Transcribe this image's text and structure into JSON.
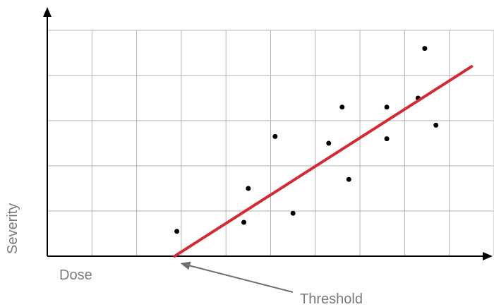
{
  "chart_data": {
    "type": "scatter",
    "title": "",
    "xlabel": "Dose",
    "ylabel": "Severity",
    "xlim": [
      0,
      10
    ],
    "ylim": [
      0,
      5
    ],
    "grid": true,
    "points": [
      {
        "x": 2.9,
        "y": 0.55
      },
      {
        "x": 4.4,
        "y": 0.75
      },
      {
        "x": 4.5,
        "y": 1.5
      },
      {
        "x": 5.1,
        "y": 2.65
      },
      {
        "x": 5.5,
        "y": 0.95
      },
      {
        "x": 6.3,
        "y": 2.5
      },
      {
        "x": 6.6,
        "y": 3.3
      },
      {
        "x": 6.75,
        "y": 1.7
      },
      {
        "x": 7.6,
        "y": 3.3
      },
      {
        "x": 7.6,
        "y": 2.6
      },
      {
        "x": 8.3,
        "y": 3.5
      },
      {
        "x": 8.45,
        "y": 4.6
      },
      {
        "x": 8.7,
        "y": 2.9
      }
    ],
    "fit_line": {
      "x": [
        2.85,
        9.5
      ],
      "y": [
        0.0,
        4.2
      ],
      "color": "#d42a33"
    },
    "annotation": {
      "text": "Threshold",
      "x": 2.85,
      "y": 0.0
    }
  }
}
